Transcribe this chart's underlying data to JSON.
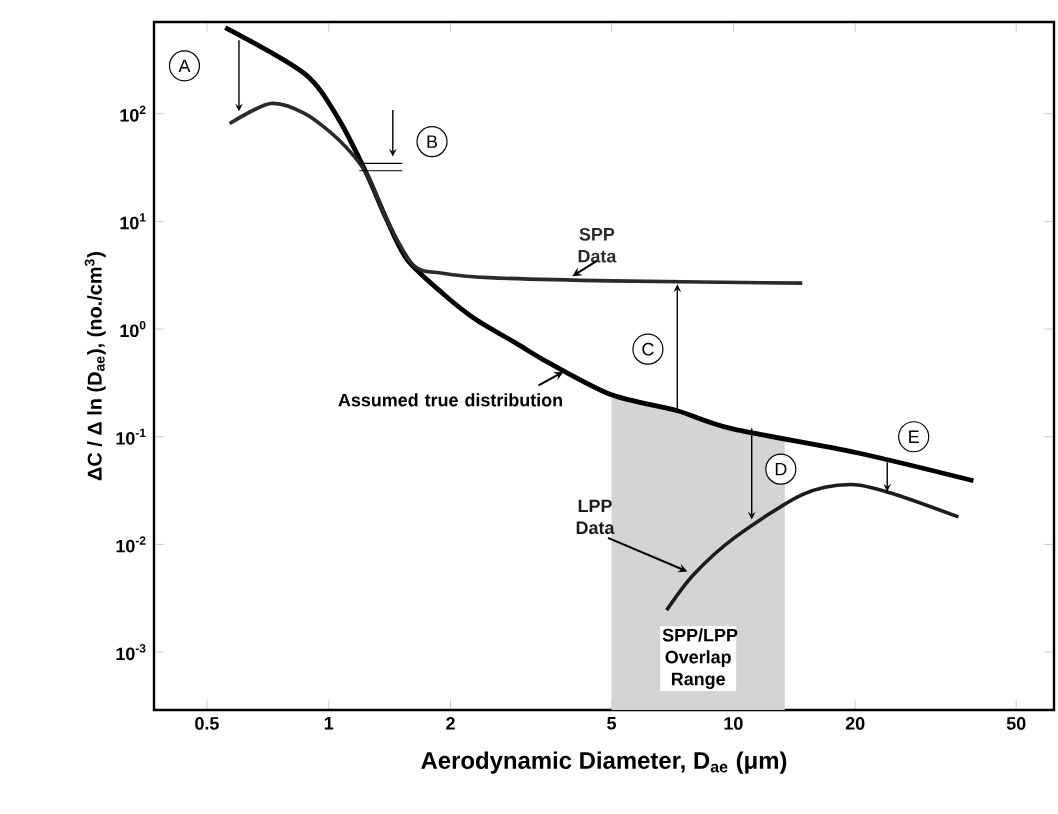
{
  "chart_data": {
    "type": "line",
    "log": "xy",
    "xlabel": "Aerodynamic Diameter, D$_{ae}$ (μm)",
    "ylabel": "ΔC / Δ ln (D$_{ae}$),  (no./cm$^{3}$)",
    "xlim": [
      0.37,
      62
    ],
    "ylim": [
      0.00029,
      710
    ],
    "xticks": [
      0.5,
      1,
      2,
      5,
      10,
      20,
      50
    ],
    "yticks": [
      {
        "value": 0.001,
        "label": "10$^{-3}$"
      },
      {
        "value": 0.01,
        "label": "10$^{-2}$"
      },
      {
        "value": 0.1,
        "label": "10$^{-1}$"
      },
      {
        "value": 1,
        "label": "10$^{0}$"
      },
      {
        "value": 10,
        "label": "10$^{1}$"
      },
      {
        "value": 100,
        "label": "10$^{2}$"
      }
    ],
    "marker": "none",
    "series": [
      {
        "name": "Assumed true distribution",
        "color": "#000000",
        "x": [
          0.555,
          0.873,
          1.06,
          1.24,
          1.39,
          1.56,
          1.91,
          2.3,
          2.9,
          3.52,
          5.0,
          7.27,
          9.9,
          20.2,
          39.2
        ],
        "values": [
          630,
          234,
          88,
          27.8,
          10.4,
          4.45,
          2.15,
          1.24,
          0.74,
          0.48,
          0.245,
          0.174,
          0.119,
          0.071,
          0.039
        ]
      },
      {
        "name": "SPP Data",
        "color": "#2a2a2a",
        "x": [
          0.569,
          0.718,
          0.873,
          1.06,
          1.24,
          1.39,
          1.62,
          1.91,
          2.49,
          5.0,
          14.8
        ],
        "values": [
          81,
          124,
          100,
          57,
          27.8,
          10.4,
          3.9,
          3.3,
          3.0,
          2.8,
          2.67
        ]
      },
      {
        "name": "LPP Data",
        "color": "#1c1c1c",
        "x": [
          6.84,
          7.96,
          10.05,
          14.8,
          19.5,
          24.5,
          36
        ],
        "values": [
          0.00245,
          0.0052,
          0.0115,
          0.029,
          0.036,
          0.03,
          0.018
        ]
      }
    ],
    "bands": [
      {
        "axis": "x",
        "from": 5.0,
        "to": 13.4,
        "label": "SPP/LPP Overlap Range",
        "color": "#d4d4d4"
      }
    ],
    "annotations": [
      {
        "text": "A",
        "x": 0.44,
        "y": 278
      },
      {
        "text": "B",
        "x": 1.8,
        "y": 55
      },
      {
        "text": "C",
        "x": 6.15,
        "y": 0.65
      },
      {
        "text": "D",
        "x": 13.1,
        "y": 0.05
      },
      {
        "text": "E",
        "x": 27.9,
        "y": 0.1
      }
    ]
  }
}
